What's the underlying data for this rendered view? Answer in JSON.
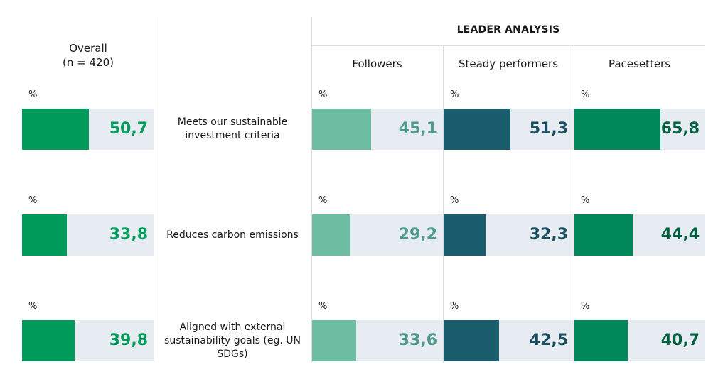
{
  "chart_data": {
    "type": "bar",
    "unit_label": "%",
    "title": "LEADER ANALYSIS",
    "overall_label": "Overall",
    "overall_sub": "(n = 420)",
    "groups": [
      "Followers",
      "Steady performers",
      "Pacesetters"
    ],
    "categories": [
      "Meets our sustainable investment criteria",
      "Reduces carbon emissions",
      "Aligned with external sustainability goals (eg. UN SDGs)"
    ],
    "series": [
      {
        "name": "Overall",
        "values": [
          "50,7",
          "33,8",
          "39,8"
        ],
        "numeric": [
          50.7,
          33.8,
          39.8
        ],
        "fill": "#009a5b",
        "text": "#009a5b"
      },
      {
        "name": "Followers",
        "values": [
          "45,1",
          "29,2",
          "33,6"
        ],
        "numeric": [
          45.1,
          29.2,
          33.6
        ],
        "fill": "#6dbda3",
        "text": "#4e9a86"
      },
      {
        "name": "Steady performers",
        "values": [
          "51,3",
          "32,3",
          "42,5"
        ],
        "numeric": [
          51.3,
          32.3,
          42.5
        ],
        "fill": "#1a5e6e",
        "text": "#1a4e5e"
      },
      {
        "name": "Pacesetters",
        "values": [
          "65,8",
          "44,4",
          "40,7"
        ],
        "numeric": [
          65.8,
          44.4,
          40.7
        ],
        "fill": "#00875a",
        "text": "#00603f"
      }
    ],
    "ylim": [
      0,
      100
    ],
    "bar_background": "#e6ecf2"
  }
}
